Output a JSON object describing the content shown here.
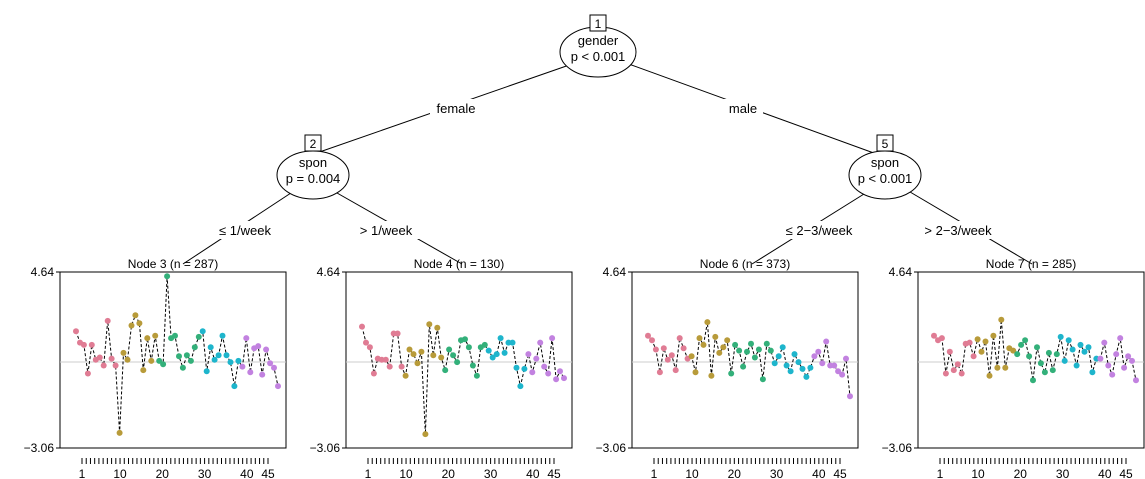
{
  "tree": {
    "inner_nodes": [
      {
        "id": "1",
        "variable": "gender",
        "pvalue": "p < 0.001"
      },
      {
        "id": "2",
        "variable": "spon",
        "pvalue": "p = 0.004"
      },
      {
        "id": "5",
        "variable": "spon",
        "pvalue": "p < 0.001"
      }
    ],
    "edges": [
      {
        "from": "1",
        "to": "2",
        "label": "female"
      },
      {
        "from": "1",
        "to": "5",
        "label": "male"
      },
      {
        "from": "2",
        "to": "3",
        "label": "≤ 1/week"
      },
      {
        "from": "2",
        "to": "4",
        "label": "> 1/week"
      },
      {
        "from": "5",
        "to": "6",
        "label": "≤ 2−3/week"
      },
      {
        "from": "5",
        "to": "7",
        "label": "> 2−3/week"
      }
    ]
  },
  "colors": {
    "group1": "#E07C94",
    "group2": "#B89B3A",
    "group3": "#33B07A",
    "group4": "#1EB5CC",
    "group5": "#C282E0",
    "reference_line": "#cccccc"
  },
  "chart_data": {
    "type": "line",
    "shared_axis": {
      "ylim": [
        -3.06,
        4.64
      ],
      "ytick_labels": [
        "4.64",
        "−3.06"
      ],
      "xlim": [
        1,
        45
      ],
      "xtick_labels": [
        "1",
        "10",
        "20",
        "30",
        "40",
        "45"
      ],
      "reference_y": 0.7
    },
    "panels": [
      {
        "title": "Node 3 (n = 287)",
        "values": [
          2.05,
          1.55,
          1.45,
          0.2,
          1.45,
          0.8,
          0.9,
          0.55,
          2.5,
          0.85,
          0.55,
          -2.4,
          1.1,
          0.8,
          2.3,
          2.75,
          2.4,
          0.35,
          1.75,
          0.75,
          1.85,
          0.75,
          0.6,
          4.45,
          1.75,
          1.85,
          0.95,
          0.45,
          1.0,
          0.75,
          1.35,
          1.8,
          2.05,
          0.3,
          1.35,
          0.8,
          1.0,
          1.85,
          1.0,
          0.7,
          -0.35,
          0.75,
          0.5,
          1.75,
          0.25,
          1.3,
          1.4,
          0.15,
          1.25,
          0.65,
          0.45,
          -0.35
        ]
      },
      {
        "title": "Node 4 (n = 130)",
        "values": [
          2.25,
          1.55,
          1.35,
          0.2,
          0.85,
          0.8,
          0.8,
          0.5,
          1.95,
          1.95,
          0.5,
          0.1,
          1.25,
          1.05,
          0.65,
          1.15,
          -2.45,
          2.35,
          1.0,
          2.2,
          0.9,
          0.35,
          1.25,
          1.0,
          0.7,
          1.65,
          1.7,
          1.35,
          0.55,
          0.1,
          1.35,
          1.45,
          1.2,
          0.9,
          1.05,
          1.75,
          1.1,
          1.55,
          1.55,
          0.45,
          -0.35,
          0.4,
          1.05,
          0.25,
          0.85,
          1.55,
          0.5,
          0.2,
          1.75,
          -0.05,
          0.3,
          0.0
        ]
      },
      {
        "title": "Node 6 (n = 373)",
        "values": [
          1.85,
          1.65,
          1.25,
          0.25,
          1.3,
          0.8,
          1.0,
          0.35,
          1.75,
          1.3,
          0.85,
          0.95,
          0.25,
          1.75,
          1.45,
          2.45,
          0.1,
          1.8,
          1.1,
          1.35,
          1.65,
          0.2,
          1.45,
          1.2,
          0.5,
          1.15,
          1.5,
          0.9,
          1.25,
          -0.05,
          1.5,
          1.2,
          0.65,
          0.95,
          1.35,
          0.55,
          0.3,
          1.05,
          0.7,
          0.4,
          0.05,
          0.45,
          0.95,
          1.15,
          0.65,
          1.6,
          0.55,
          0.55,
          0.3,
          0.15,
          0.85,
          -0.8
        ]
      },
      {
        "title": "Node 7 (n = 285)",
        "values": [
          1.85,
          1.65,
          1.75,
          0.2,
          1.15,
          0.35,
          0.6,
          0.2,
          1.5,
          1.55,
          0.95,
          1.7,
          1.15,
          1.6,
          0.1,
          1.85,
          0.45,
          2.55,
          0.45,
          1.3,
          1.2,
          1.05,
          1.45,
          1.65,
          0.95,
          -0.1,
          1.35,
          0.65,
          0.25,
          1.1,
          0.35,
          1.05,
          1.8,
          0.75,
          1.65,
          1.25,
          0.55,
          1.45,
          1.15,
          1.35,
          0.25,
          0.85,
          0.85,
          1.55,
          0.55,
          0.15,
          1.05,
          1.75,
          0.45,
          0.95,
          0.75,
          -0.1
        ]
      }
    ]
  }
}
